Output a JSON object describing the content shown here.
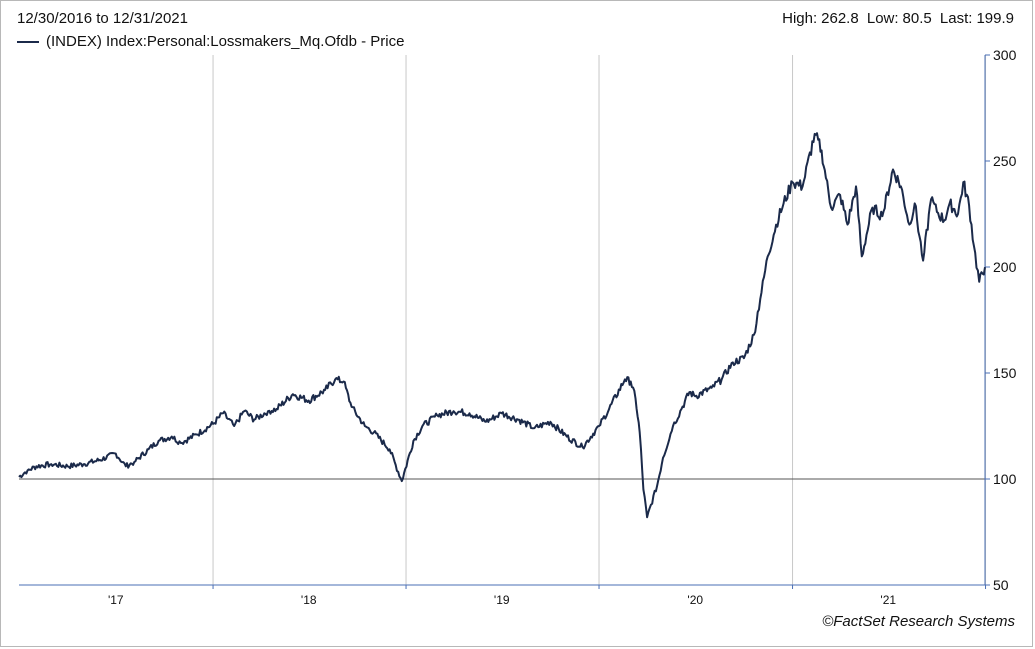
{
  "header": {
    "date_range": "12/30/2016 to 12/31/2021",
    "high_label": "High:",
    "high_value": "262.8",
    "low_label": "Low:",
    "low_value": "80.5",
    "last_label": "Last:",
    "last_value": "199.9"
  },
  "footer": {
    "credit": "©FactSet Research Systems"
  },
  "colors": {
    "line": "#1b2a4a",
    "grid": "#c8c8c8",
    "axis": "#4a6fb5",
    "baseline": "#555555"
  },
  "chart_data": {
    "type": "line",
    "title": "",
    "xlabel": "",
    "ylabel": "",
    "ylim": [
      50,
      300
    ],
    "xlim": [
      "2016-12-30",
      "2021-12-31"
    ],
    "yticks": [
      50,
      100,
      150,
      200,
      250,
      300
    ],
    "xticks": [
      {
        "label": "'17",
        "date": "2017-07-01"
      },
      {
        "label": "'18",
        "date": "2018-07-01"
      },
      {
        "label": "'19",
        "date": "2019-07-01"
      },
      {
        "label": "'20",
        "date": "2020-07-01"
      },
      {
        "label": "'21",
        "date": "2021-07-01"
      }
    ],
    "year_gridlines": [
      "2018-01-01",
      "2019-01-01",
      "2020-01-01",
      "2021-01-01",
      "2022-01-01"
    ],
    "reference_line": 100,
    "grid": true,
    "legend": "top-left",
    "series": [
      {
        "name": "(INDEX) Index:Personal:Lossmakers_Mq.Ofdb - Price",
        "x": [
          "2016-12-30",
          "2017-01-15",
          "2017-02-01",
          "2017-03-01",
          "2017-04-01",
          "2017-05-01",
          "2017-06-01",
          "2017-07-01",
          "2017-07-20",
          "2017-08-05",
          "2017-09-01",
          "2017-09-20",
          "2017-10-15",
          "2017-11-01",
          "2017-12-01",
          "2018-01-01",
          "2018-01-20",
          "2018-02-10",
          "2018-03-01",
          "2018-03-20",
          "2018-04-15",
          "2018-05-01",
          "2018-06-01",
          "2018-07-01",
          "2018-08-01",
          "2018-08-20",
          "2018-09-05",
          "2018-09-20",
          "2018-10-15",
          "2018-11-01",
          "2018-12-01",
          "2018-12-24",
          "2019-01-15",
          "2019-02-01",
          "2019-03-01",
          "2019-04-01",
          "2019-05-01",
          "2019-06-01",
          "2019-07-01",
          "2019-08-01",
          "2019-09-01",
          "2019-10-01",
          "2019-11-01",
          "2019-12-01",
          "2020-01-01",
          "2020-01-20",
          "2020-02-19",
          "2020-03-01",
          "2020-03-10",
          "2020-03-18",
          "2020-03-25",
          "2020-04-01",
          "2020-04-20",
          "2020-05-01",
          "2020-05-20",
          "2020-06-05",
          "2020-06-20",
          "2020-07-01",
          "2020-08-01",
          "2020-08-20",
          "2020-09-10",
          "2020-10-01",
          "2020-10-20",
          "2020-11-01",
          "2020-11-15",
          "2020-12-01",
          "2020-12-15",
          "2021-01-01",
          "2021-01-20",
          "2021-02-12",
          "2021-02-25",
          "2021-03-05",
          "2021-03-15",
          "2021-04-01",
          "2021-04-15",
          "2021-05-01",
          "2021-05-12",
          "2021-06-01",
          "2021-06-20",
          "2021-07-10",
          "2021-07-25",
          "2021-08-10",
          "2021-08-20",
          "2021-09-05",
          "2021-09-20",
          "2021-10-01",
          "2021-10-15",
          "2021-10-25",
          "2021-11-10",
          "2021-11-20",
          "2021-12-01",
          "2021-12-10",
          "2021-12-20",
          "2021-12-31"
        ],
        "y": [
          101,
          104,
          106,
          107,
          106,
          107,
          109,
          112,
          106,
          108,
          114,
          118,
          120,
          117,
          121,
          126,
          131,
          125,
          132,
          128,
          132,
          133,
          140,
          137,
          142,
          147,
          146,
          134,
          125,
          122,
          114,
          99,
          118,
          125,
          130,
          132,
          131,
          127,
          131,
          128,
          124,
          127,
          120,
          115,
          125,
          133,
          147,
          146,
          138,
          122,
          95,
          82,
          97,
          110,
          125,
          133,
          141,
          139,
          143,
          147,
          155,
          157,
          168,
          185,
          205,
          220,
          230,
          240,
          238,
          262.8,
          255,
          242,
          228,
          234,
          220,
          238,
          205,
          228,
          224,
          246,
          238,
          220,
          230,
          203,
          232,
          226,
          222,
          230,
          225,
          240,
          229,
          210,
          193,
          199.9
        ]
      }
    ]
  }
}
